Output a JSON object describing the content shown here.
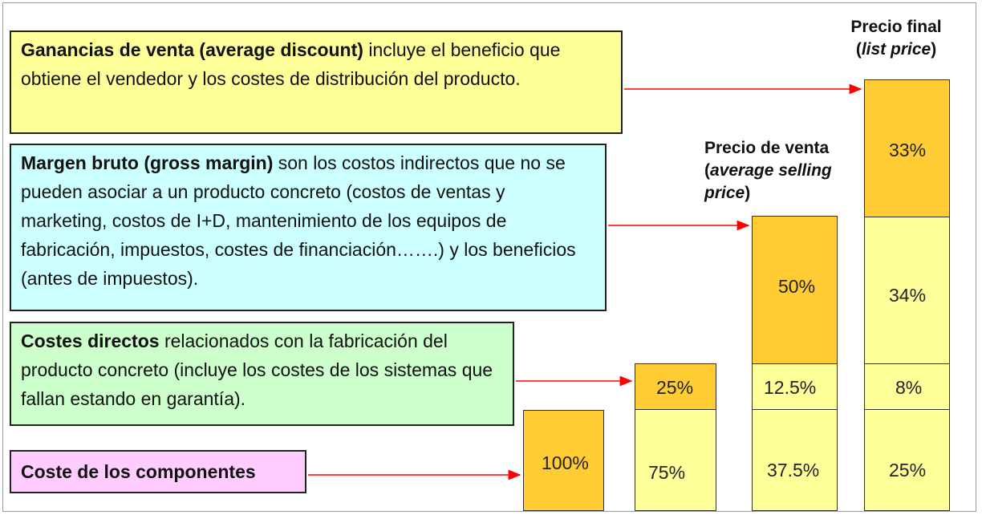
{
  "boxes": {
    "ganancias": {
      "bold": "Ganancias de venta (average discount)",
      "text": " incluye el beneficio que obtiene el vendedor y los costes de distribución del producto."
    },
    "margen": {
      "bold": "Margen bruto (gross margin)",
      "text": " son los costos indirectos que no se pueden asociar a un producto concreto (costos de ventas y marketing, costos de I+D, mantenimiento de los equipos de fabricación, impuestos, costes de financiación…….) y los beneficios (antes de impuestos)."
    },
    "costes": {
      "bold": "Costes directos",
      "text": " relacionados con la fabricación del producto concreto (incluye los costes de los sistemas que fallan estando en garantía)."
    },
    "coste_componentes": {
      "bold": "Coste de los componentes"
    }
  },
  "headers": {
    "precio_venta": {
      "line1": "Precio de venta",
      "open": "(",
      "italic": "average selling price",
      "close": ")"
    },
    "precio_final": {
      "line1": "Precio final",
      "open": "(",
      "italic": "list price",
      "close": ")"
    }
  },
  "columns": {
    "c1": {
      "seg1": "100%"
    },
    "c2": {
      "top": "25%",
      "bottom": "75%"
    },
    "c3": {
      "top": "50%",
      "mid": "12.5%",
      "bottom": "37.5%"
    },
    "c4": {
      "top": "33%",
      "mid1": "34%",
      "mid2": "8%",
      "bottom": "25%"
    }
  },
  "colors": {
    "dark_segment": "#ffcc33",
    "light_segment": "#ffff99",
    "arrow": "#ff0000",
    "ganancias_box": "#ffff99",
    "margen_box": "#ccffff",
    "costes_box": "#ccffcc",
    "componentes_box": "#ffccff"
  }
}
